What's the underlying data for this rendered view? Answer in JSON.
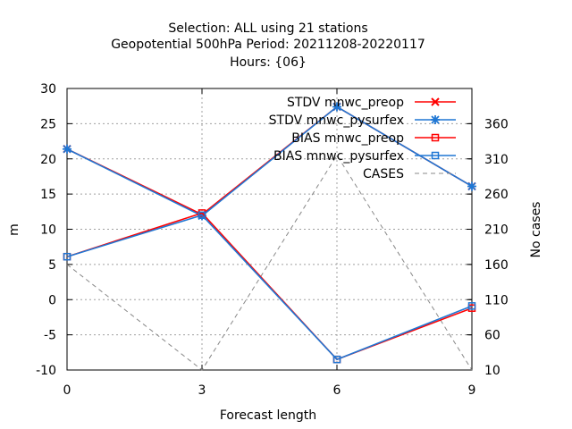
{
  "chart_data": {
    "type": "line",
    "title_lines": [
      "Selection: ALL using    21 stations",
      "Geopotential 500hPa   Period: 20211208-20220117",
      "Hours: {06}"
    ],
    "xlabel": "Forecast length",
    "ylabel": "m",
    "y2label": "No cases",
    "x": [
      0,
      3,
      6,
      9
    ],
    "xlim": [
      0,
      9
    ],
    "ylim": [
      -10,
      30
    ],
    "y2lim": [
      10,
      410
    ],
    "xticks": [
      0,
      3,
      6,
      9
    ],
    "yticks": [
      -10,
      -5,
      0,
      5,
      10,
      15,
      20,
      25,
      30
    ],
    "y2ticks": [
      10,
      60,
      110,
      160,
      210,
      260,
      310,
      360
    ],
    "grid": true,
    "legend_position": "top-right",
    "series": [
      {
        "name": "STDV mnwc_preop",
        "axis": "y1",
        "color": "#ff0000",
        "marker": "x",
        "dash": "solid",
        "values": [
          21.4,
          12.1,
          27.4,
          16.1
        ]
      },
      {
        "name": "STDV mnwc_pysurfex",
        "axis": "y1",
        "color": "#1f77d4",
        "marker": "star",
        "dash": "solid",
        "values": [
          21.4,
          11.9,
          27.4,
          16.1
        ]
      },
      {
        "name": "BIAS mnwc_preop",
        "axis": "y1",
        "color": "#ff0000",
        "marker": "square",
        "dash": "solid",
        "values": [
          6.1,
          12.3,
          -8.5,
          -1.2
        ]
      },
      {
        "name": "BIAS mnwc_pysurfex",
        "axis": "y1",
        "color": "#1f77d4",
        "marker": "square",
        "dash": "solid",
        "values": [
          6.1,
          12.0,
          -8.5,
          -0.9
        ]
      },
      {
        "name": "CASES",
        "axis": "y2",
        "color": "#888888",
        "marker": "none",
        "dash": "dashed",
        "values": [
          160,
          10,
          315,
          10
        ]
      }
    ]
  }
}
